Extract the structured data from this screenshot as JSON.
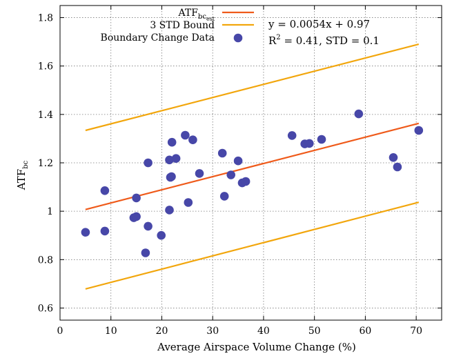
{
  "chart_data": {
    "type": "scatter",
    "xlabel": "Average Airspace Volume Change (%)",
    "ylabel": {
      "main": "ATF",
      "sub": "bc"
    },
    "xlim": [
      0,
      75
    ],
    "ylim": [
      0.55,
      1.85
    ],
    "xticks": [
      0,
      10,
      20,
      30,
      40,
      50,
      60,
      70
    ],
    "yticks": [
      0.6,
      0.8,
      1,
      1.2,
      1.4,
      1.6,
      1.8
    ],
    "grid": true,
    "legend_position": "top-center",
    "legend": [
      {
        "main": "ATF",
        "sub": "bc",
        "subsub": "est",
        "kind": "line",
        "color": "#ef5a1a"
      },
      {
        "main": "3 STD Bound",
        "sub": "",
        "subsub": "",
        "kind": "line",
        "color": "#f2a60c"
      },
      {
        "main": "Boundary Change Data",
        "sub": "",
        "subsub": "",
        "kind": "marker",
        "color": "#4747a8"
      }
    ],
    "annotations": {
      "equation": "y = 0.0054x + 0.97",
      "r2_prefix": "R",
      "r2_exp": "2",
      "r2_rest": " = 0.41, STD = 0.1"
    },
    "series": [
      {
        "kind": "scatter",
        "color": "#4747a8",
        "points": [
          [
            5,
            0.913
          ],
          [
            8.8,
            0.918
          ],
          [
            8.8,
            1.085
          ],
          [
            14.5,
            0.973
          ],
          [
            15,
            0.978
          ],
          [
            15,
            1.055
          ],
          [
            16.8,
            0.828
          ],
          [
            17.3,
            0.938
          ],
          [
            17.3,
            1.2
          ],
          [
            19.9,
            0.9
          ],
          [
            21.5,
            1.005
          ],
          [
            21.5,
            1.212
          ],
          [
            21.7,
            1.14
          ],
          [
            21.9,
            1.143
          ],
          [
            22,
            1.285
          ],
          [
            22.8,
            1.218
          ],
          [
            24.6,
            1.314
          ],
          [
            25.2,
            1.036
          ],
          [
            26.1,
            1.295
          ],
          [
            27.4,
            1.156
          ],
          [
            31.9,
            1.24
          ],
          [
            32.3,
            1.062
          ],
          [
            33.6,
            1.15
          ],
          [
            35,
            1.208
          ],
          [
            35.8,
            1.117
          ],
          [
            36.5,
            1.123
          ],
          [
            45.6,
            1.313
          ],
          [
            48.1,
            1.278
          ],
          [
            49,
            1.28
          ],
          [
            51.4,
            1.297
          ],
          [
            58.7,
            1.402
          ],
          [
            65.5,
            1.222
          ],
          [
            66.3,
            1.183
          ],
          [
            70.5,
            1.334
          ]
        ]
      },
      {
        "kind": "line",
        "role": "fit",
        "color": "#ef5a1a",
        "points": [
          [
            5,
            1.007
          ],
          [
            70.5,
            1.363
          ]
        ]
      },
      {
        "kind": "line",
        "role": "upper-bound",
        "color": "#f2a60c",
        "points": [
          [
            5,
            1.334
          ],
          [
            70.5,
            1.69
          ]
        ]
      },
      {
        "kind": "line",
        "role": "lower-bound",
        "color": "#f2a60c",
        "points": [
          [
            5,
            0.679
          ],
          [
            70.5,
            1.037
          ]
        ]
      }
    ]
  }
}
